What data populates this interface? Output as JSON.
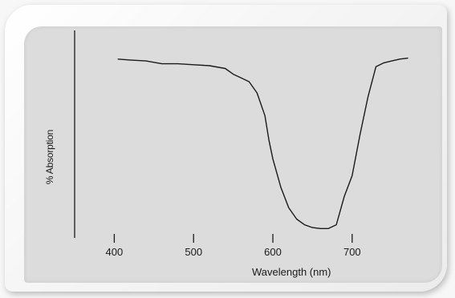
{
  "chart_data": {
    "type": "line",
    "title": "",
    "xlabel": "Wavelength (nm)",
    "ylabel": "% Absorption",
    "xlim": [
      350,
      770
    ],
    "ylim": [
      0,
      100
    ],
    "xticks": [
      400,
      500,
      600,
      700
    ],
    "xtick_labels": [
      "400",
      "500",
      "600",
      "700"
    ],
    "y_tick_labels_shown": false,
    "grid": false,
    "legend": "none",
    "line_color": "#1a1a1a",
    "series": [
      {
        "x": [
          405,
          420,
          440,
          460,
          480,
          500,
          520,
          540,
          550,
          560,
          570,
          580,
          590,
          595,
          600,
          610,
          620,
          630,
          640,
          650,
          660,
          670,
          680,
          690,
          700,
          710,
          720,
          730,
          740,
          750,
          760,
          770
        ],
        "y": [
          95,
          94.5,
          94,
          92.5,
          92.5,
          92,
          91.5,
          90,
          87,
          85,
          83,
          77,
          65,
          52,
          42,
          27,
          16,
          10,
          7,
          5.5,
          5,
          5,
          7,
          22,
          33,
          55,
          75,
          91,
          93,
          94,
          95,
          95.5
        ]
      }
    ]
  }
}
